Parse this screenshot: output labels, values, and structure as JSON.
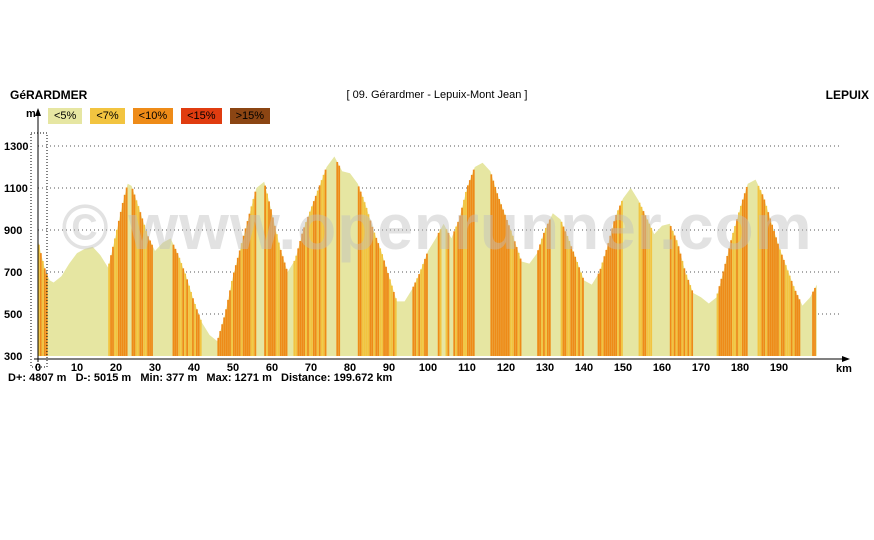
{
  "header": {
    "start": "GéRARDMER",
    "title": "[ 09. Gérardmer - Lepuix-Mont Jean ]",
    "end": "LEPUIX"
  },
  "legend": [
    {
      "label": "<5%",
      "color": "#e6e6a2"
    },
    {
      "label": "<7%",
      "color": "#f2c440"
    },
    {
      "label": "<10%",
      "color": "#ee8b18"
    },
    {
      "label": "<15%",
      "color": "#e03c10"
    },
    {
      "label": ">15%",
      "color": "#8b4513"
    }
  ],
  "stats": {
    "dplus": "D+: 4807 m",
    "dminus": "D-: 5015 m",
    "min": "Min: 377 m",
    "max": "Max: 1271 m",
    "distance": "Distance: 199.672 km"
  },
  "watermark": "© www.openrunner.com",
  "chart_data": {
    "type": "area",
    "xlabel": "km",
    "ylabel": "m",
    "xlim": [
      0,
      200
    ],
    "ylim": [
      300,
      1400
    ],
    "xticks": [
      0,
      10,
      20,
      30,
      40,
      50,
      60,
      70,
      80,
      90,
      100,
      110,
      120,
      130,
      140,
      150,
      160,
      170,
      180,
      190
    ],
    "yticks": [
      300,
      500,
      700,
      900,
      1100,
      1300
    ],
    "grid": "horizontal dotted",
    "series": [
      {
        "x": [
          0,
          1,
          2,
          3,
          4,
          6,
          8,
          10,
          12,
          14,
          16,
          18,
          20,
          22,
          23,
          24,
          26,
          28,
          30,
          32,
          34,
          36,
          38,
          40,
          42,
          44,
          46,
          48,
          50,
          52,
          54,
          56,
          58,
          60,
          62,
          64,
          66,
          68,
          70,
          72,
          74,
          76,
          78,
          80,
          82,
          84,
          86,
          88,
          90,
          92,
          94,
          96,
          98,
          100,
          102,
          104,
          106,
          108,
          110,
          112,
          114,
          116,
          118,
          120,
          122,
          124,
          126,
          128,
          130,
          132,
          134,
          136,
          138,
          140,
          142,
          144,
          146,
          148,
          150,
          152,
          154,
          156,
          158,
          160,
          162,
          164,
          166,
          168,
          170,
          172,
          174,
          176,
          178,
          180,
          182,
          184,
          186,
          188,
          190,
          192,
          194,
          196,
          198,
          199.7
        ],
        "values": [
          850,
          770,
          700,
          660,
          650,
          680,
          740,
          790,
          810,
          820,
          780,
          720,
          880,
          1050,
          1120,
          1110,
          1000,
          880,
          800,
          840,
          860,
          780,
          680,
          560,
          460,
          400,
          370,
          500,
          680,
          820,
          960,
          1100,
          1130,
          980,
          820,
          700,
          760,
          900,
          1000,
          1100,
          1200,
          1250,
          1180,
          1170,
          1120,
          1020,
          900,
          800,
          680,
          560,
          560,
          620,
          700,
          800,
          860,
          930,
          860,
          950,
          1100,
          1200,
          1220,
          1180,
          1060,
          960,
          860,
          750,
          740,
          790,
          900,
          980,
          950,
          860,
          760,
          660,
          640,
          700,
          820,
          960,
          1050,
          1100,
          1040,
          960,
          880,
          920,
          930,
          840,
          700,
          600,
          580,
          550,
          580,
          720,
          870,
          1000,
          1120,
          1140,
          1060,
          940,
          820,
          720,
          620,
          540,
          580,
          640
        ]
      }
    ]
  }
}
